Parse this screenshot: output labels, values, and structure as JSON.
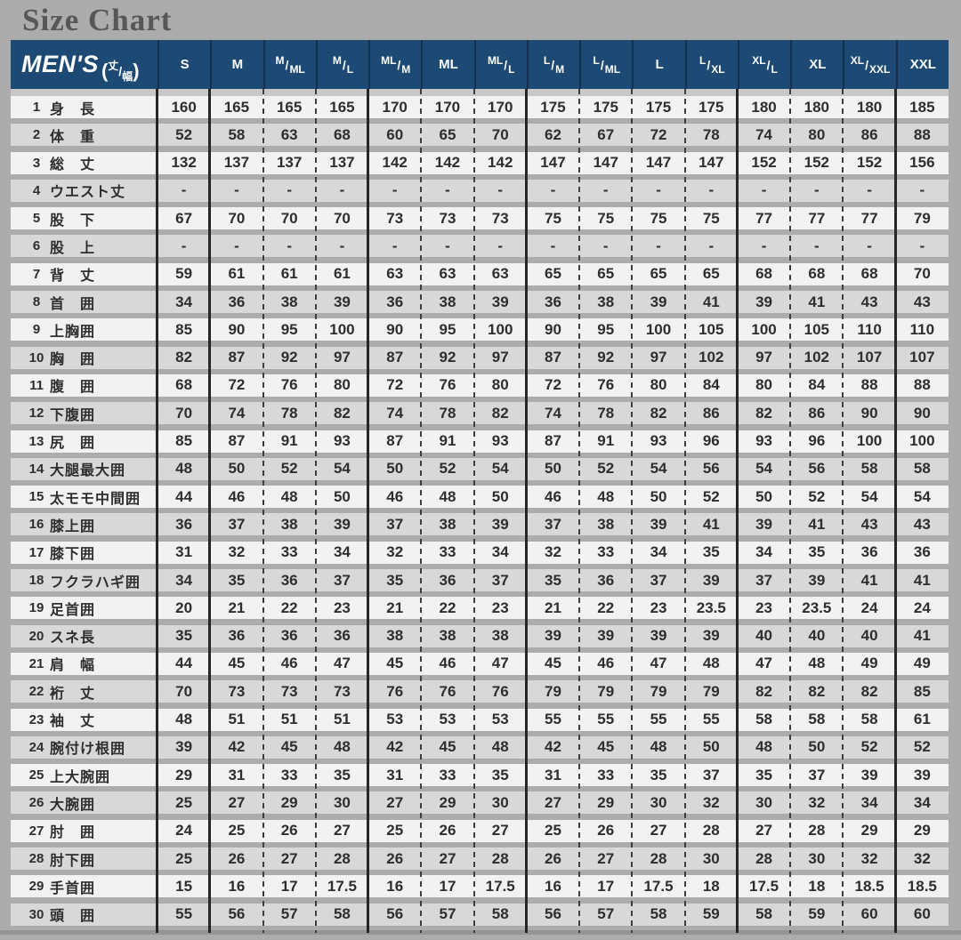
{
  "page": {
    "title": "Size Chart"
  },
  "colors": {
    "page_bg": "#ACACAC",
    "title_text": "#575757",
    "header_bg": "#1C4A74",
    "header_text": "#FFFFFF",
    "header_divider": "#13304E",
    "row_light": "#F2F2F2",
    "row_dark": "#D8D8D8",
    "cell_text": "#2E2E2E",
    "line_solid": "#262626",
    "line_dashed": "#3E3E3E",
    "shadow": "#949494"
  },
  "header": {
    "brand": "MEN'S",
    "paren_open": "(",
    "unit_top": "丈",
    "slash": "/",
    "unit_bottom": "幅",
    "paren_close": ")"
  },
  "chart_data": {
    "type": "table",
    "title": "Size Chart",
    "columns": [
      "S",
      "M",
      "M/ML",
      "M/L",
      "ML/M",
      "ML",
      "ML/L",
      "L/M",
      "L/ML",
      "L",
      "L/XL",
      "XL/L",
      "XL",
      "XL/XXL",
      "XXL"
    ],
    "group_separator_columns": [
      0,
      1,
      4,
      7,
      11,
      14
    ],
    "rows": [
      {
        "no": "1",
        "label": "身　長",
        "values": [
          160,
          165,
          165,
          165,
          170,
          170,
          170,
          175,
          175,
          175,
          175,
          180,
          180,
          180,
          185
        ]
      },
      {
        "no": "2",
        "label": "体　重",
        "values": [
          52,
          58,
          63,
          68,
          60,
          65,
          70,
          62,
          67,
          72,
          78,
          74,
          80,
          86,
          88
        ]
      },
      {
        "no": "3",
        "label": "総　丈",
        "values": [
          132,
          137,
          137,
          137,
          142,
          142,
          142,
          147,
          147,
          147,
          147,
          152,
          152,
          152,
          156
        ]
      },
      {
        "no": "4",
        "label": "ウエスト丈",
        "values": [
          "-",
          "-",
          "-",
          "-",
          "-",
          "-",
          "-",
          "-",
          "-",
          "-",
          "-",
          "-",
          "-",
          "-",
          "-"
        ]
      },
      {
        "no": "5",
        "label": "股　下",
        "values": [
          67,
          70,
          70,
          70,
          73,
          73,
          73,
          75,
          75,
          75,
          75,
          77,
          77,
          77,
          79
        ]
      },
      {
        "no": "6",
        "label": "股　上",
        "values": [
          "-",
          "-",
          "-",
          "-",
          "-",
          "-",
          "-",
          "-",
          "-",
          "-",
          "-",
          "-",
          "-",
          "-",
          "-"
        ]
      },
      {
        "no": "7",
        "label": "背　丈",
        "values": [
          59,
          61,
          61,
          61,
          63,
          63,
          63,
          65,
          65,
          65,
          65,
          68,
          68,
          68,
          70
        ]
      },
      {
        "no": "8",
        "label": "首　囲",
        "values": [
          34,
          36,
          38,
          39,
          36,
          38,
          39,
          36,
          38,
          39,
          41,
          39,
          41,
          43,
          43
        ]
      },
      {
        "no": "9",
        "label": "上胸囲",
        "values": [
          85,
          90,
          95,
          100,
          90,
          95,
          100,
          90,
          95,
          100,
          105,
          100,
          105,
          110,
          110
        ]
      },
      {
        "no": "10",
        "label": "胸　囲",
        "values": [
          82,
          87,
          92,
          97,
          87,
          92,
          97,
          87,
          92,
          97,
          102,
          97,
          102,
          107,
          107
        ]
      },
      {
        "no": "11",
        "label": "腹　囲",
        "values": [
          68,
          72,
          76,
          80,
          72,
          76,
          80,
          72,
          76,
          80,
          84,
          80,
          84,
          88,
          88
        ]
      },
      {
        "no": "12",
        "label": "下腹囲",
        "values": [
          70,
          74,
          78,
          82,
          74,
          78,
          82,
          74,
          78,
          82,
          86,
          82,
          86,
          90,
          90
        ]
      },
      {
        "no": "13",
        "label": "尻　囲",
        "values": [
          85,
          87,
          91,
          93,
          87,
          91,
          93,
          87,
          91,
          93,
          96,
          93,
          96,
          100,
          100
        ]
      },
      {
        "no": "14",
        "label": "大腿最大囲",
        "values": [
          48,
          50,
          52,
          54,
          50,
          52,
          54,
          50,
          52,
          54,
          56,
          54,
          56,
          58,
          58
        ]
      },
      {
        "no": "15",
        "label": "太モモ中間囲",
        "values": [
          44,
          46,
          48,
          50,
          46,
          48,
          50,
          46,
          48,
          50,
          52,
          50,
          52,
          54,
          54
        ]
      },
      {
        "no": "16",
        "label": "膝上囲",
        "values": [
          36,
          37,
          38,
          39,
          37,
          38,
          39,
          37,
          38,
          39,
          41,
          39,
          41,
          43,
          43
        ]
      },
      {
        "no": "17",
        "label": "膝下囲",
        "values": [
          31,
          32,
          33,
          34,
          32,
          33,
          34,
          32,
          33,
          34,
          35,
          34,
          35,
          36,
          36
        ]
      },
      {
        "no": "18",
        "label": "フクラハギ囲",
        "values": [
          34,
          35,
          36,
          37,
          35,
          36,
          37,
          35,
          36,
          37,
          39,
          37,
          39,
          41,
          41
        ]
      },
      {
        "no": "19",
        "label": "足首囲",
        "values": [
          20,
          21,
          22,
          23,
          21,
          22,
          23,
          21,
          22,
          23,
          23.5,
          23,
          23.5,
          24,
          24
        ]
      },
      {
        "no": "20",
        "label": "スネ長",
        "values": [
          35,
          36,
          36,
          36,
          38,
          38,
          38,
          39,
          39,
          39,
          39,
          40,
          40,
          40,
          41
        ]
      },
      {
        "no": "21",
        "label": "肩　幅",
        "values": [
          44,
          45,
          46,
          47,
          45,
          46,
          47,
          45,
          46,
          47,
          48,
          47,
          48,
          49,
          49
        ]
      },
      {
        "no": "22",
        "label": "裄　丈",
        "values": [
          70,
          73,
          73,
          73,
          76,
          76,
          76,
          79,
          79,
          79,
          79,
          82,
          82,
          82,
          85
        ]
      },
      {
        "no": "23",
        "label": "袖　丈",
        "values": [
          48,
          51,
          51,
          51,
          53,
          53,
          53,
          55,
          55,
          55,
          55,
          58,
          58,
          58,
          61
        ]
      },
      {
        "no": "24",
        "label": "腕付け根囲",
        "values": [
          39,
          42,
          45,
          48,
          42,
          45,
          48,
          42,
          45,
          48,
          50,
          48,
          50,
          52,
          52
        ]
      },
      {
        "no": "25",
        "label": "上大腕囲",
        "values": [
          29,
          31,
          33,
          35,
          31,
          33,
          35,
          31,
          33,
          35,
          37,
          35,
          37,
          39,
          39
        ]
      },
      {
        "no": "26",
        "label": "大腕囲",
        "values": [
          25,
          27,
          29,
          30,
          27,
          29,
          30,
          27,
          29,
          30,
          32,
          30,
          32,
          34,
          34
        ]
      },
      {
        "no": "27",
        "label": "肘　囲",
        "values": [
          24,
          25,
          26,
          27,
          25,
          26,
          27,
          25,
          26,
          27,
          28,
          27,
          28,
          29,
          29
        ]
      },
      {
        "no": "28",
        "label": "肘下囲",
        "values": [
          25,
          26,
          27,
          28,
          26,
          27,
          28,
          26,
          27,
          28,
          30,
          28,
          30,
          32,
          32
        ]
      },
      {
        "no": "29",
        "label": "手首囲",
        "values": [
          15,
          16,
          17,
          17.5,
          16,
          17,
          17.5,
          16,
          17,
          17.5,
          18,
          17.5,
          18,
          18.5,
          18.5
        ]
      },
      {
        "no": "30",
        "label": "頭　囲",
        "values": [
          55,
          56,
          57,
          58,
          56,
          57,
          58,
          56,
          57,
          58,
          59,
          58,
          59,
          60,
          60
        ]
      }
    ]
  }
}
